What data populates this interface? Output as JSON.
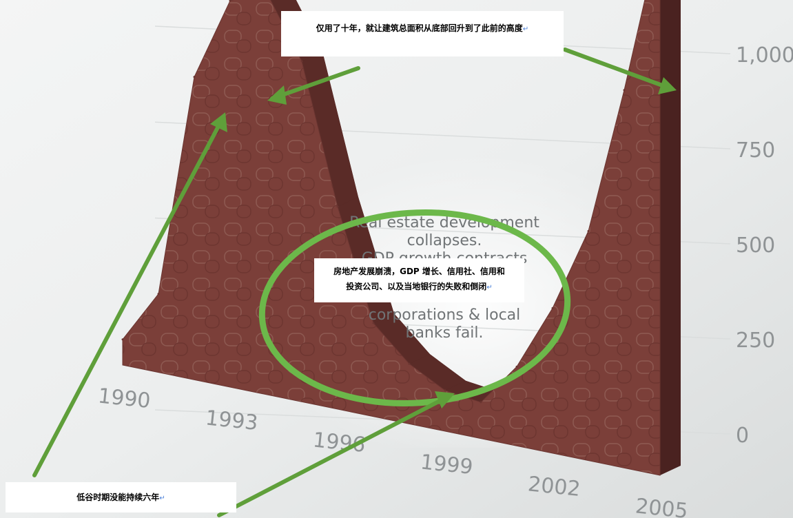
{
  "chart_data": {
    "type": "area",
    "x": [
      1990,
      1991,
      1992,
      1993,
      1994,
      1995,
      1996,
      1997,
      1998,
      1999,
      2000,
      2001,
      2002,
      2003,
      2004,
      2005
    ],
    "series": [
      {
        "values": [
          60,
          180,
          680,
          850,
          870,
          720,
          420,
          190,
          120,
          80,
          70,
          150,
          270,
          420,
          680,
          960
        ]
      }
    ],
    "xticks": [
      "1990",
      "1993",
      "1996",
      "1999",
      "2002",
      "2005"
    ],
    "yticks": [
      "0",
      "250",
      "500",
      "750",
      "1,000"
    ],
    "ylim": [
      0,
      1000
    ],
    "bar_color": "#7b3f39",
    "accent_color": "#5f9f3a"
  },
  "background_text": [
    "Real estate development",
    "collapses.",
    "GDP growth contracts",
    "corporations & local",
    "banks fail."
  ],
  "callouts": {
    "top": "仅用了十年，就让建筑总面积从底部回升到了此前的高度",
    "middle_line1": "房地产发展崩溃，GDP 增长、信用社、信用和",
    "middle_line2": "投资公司、以及当地银行的失败和倒闭",
    "bottom": "低谷时期没能持续六年",
    "mark": "↵"
  }
}
